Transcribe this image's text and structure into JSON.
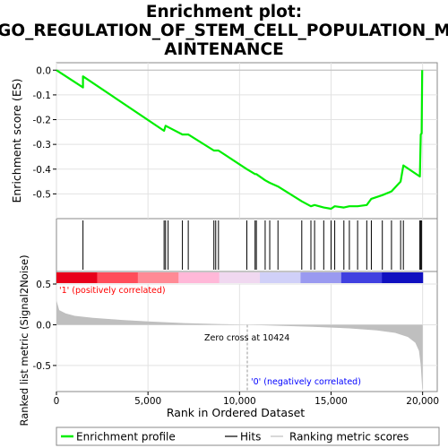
{
  "title_lines": [
    "Enrichment plot:",
    "GO_REGULATION_OF_STEM_CELL_POPULATION_M",
    "AINTENANCE"
  ],
  "colors": {
    "es_line": "#00ee00",
    "hit": "#000000",
    "metric_fill": "#bfbfbf",
    "pos_label": "#ff0000",
    "neg_label": "#0000ff"
  },
  "chart_data": {
    "type": "line",
    "es_panel": {
      "ylabel": "Enrichment score (ES)",
      "ylim": [
        -0.6,
        0.03
      ],
      "yticks": [
        0.0,
        -0.1,
        -0.2,
        -0.3,
        -0.4,
        -0.5
      ],
      "ytick_labels": [
        "0.0",
        "-0.1",
        "-0.2",
        "-0.3",
        "-0.4",
        "-0.5"
      ],
      "x": [
        0,
        1450,
        1451,
        5880,
        5960,
        6100,
        6880,
        7200,
        8600,
        8850,
        10400,
        10850,
        10920,
        11400,
        11650,
        12100,
        13400,
        13900,
        14100,
        14600,
        15000,
        15200,
        15700,
        16000,
        16450,
        16950,
        17200,
        17800,
        18300,
        18800,
        18950,
        19850,
        19900,
        19950,
        19980
      ],
      "y": [
        0.0,
        -0.07,
        -0.025,
        -0.245,
        -0.225,
        -0.23,
        -0.26,
        -0.26,
        -0.325,
        -0.325,
        -0.4,
        -0.42,
        -0.42,
        -0.445,
        -0.455,
        -0.47,
        -0.53,
        -0.55,
        -0.545,
        -0.555,
        -0.56,
        -0.55,
        -0.555,
        -0.55,
        -0.55,
        -0.545,
        -0.52,
        -0.505,
        -0.49,
        -0.45,
        -0.385,
        -0.43,
        -0.26,
        -0.255,
        0.0
      ]
    },
    "hits": [
      1450,
      5880,
      5960,
      6100,
      6880,
      7200,
      8600,
      8700,
      8850,
      10400,
      10850,
      10920,
      11400,
      11650,
      12100,
      13400,
      13900,
      14100,
      14600,
      15000,
      15200,
      15700,
      16000,
      16450,
      16950,
      17200,
      17800,
      18300,
      18800,
      18950,
      19850,
      19900,
      19950
    ],
    "metric_panel": {
      "ylabel": "Ranked list metric (Signal2Noise)",
      "ylim": [
        -0.82,
        0.5
      ],
      "yticks": [
        0.5,
        0.0,
        -0.5
      ],
      "ytick_labels": [
        "0.5",
        "0.0",
        "-0.5"
      ],
      "x": [
        0,
        150,
        500,
        1000,
        2000,
        3500,
        5000,
        7000,
        9000,
        10424,
        12000,
        14000,
        16000,
        17500,
        18500,
        19200,
        19600,
        19800,
        19900,
        19980,
        20000
      ],
      "y": [
        0.3,
        0.18,
        0.14,
        0.11,
        0.085,
        0.06,
        0.04,
        0.02,
        0.008,
        0.0,
        -0.012,
        -0.025,
        -0.045,
        -0.07,
        -0.1,
        -0.15,
        -0.22,
        -0.32,
        -0.5,
        -0.78,
        -0.8
      ]
    },
    "xlabel": "Rank in Ordered Dataset",
    "xlim": [
      0,
      20800
    ],
    "xticks": [
      0,
      5000,
      10000,
      15000,
      20000
    ],
    "xtick_labels": [
      "0",
      "5,000",
      "10,000",
      "15,000",
      "20,000"
    ],
    "zero_cross_rank": 10424,
    "heat_stops": [
      "#e8001a",
      "#ff4d5a",
      "#ff8a95",
      "#ffb8d8",
      "#f0d8f0",
      "#d0d0f8",
      "#9a9af0",
      "#4040e0",
      "#1010c0"
    ],
    "legend_entries": [
      "Enrichment profile",
      "Hits",
      "Ranking metric scores"
    ]
  },
  "annotations": {
    "pos_label": "'1' (positively correlated)",
    "neg_label": "'0' (negatively correlated)",
    "zero_cross": "Zero cross at 10424"
  }
}
